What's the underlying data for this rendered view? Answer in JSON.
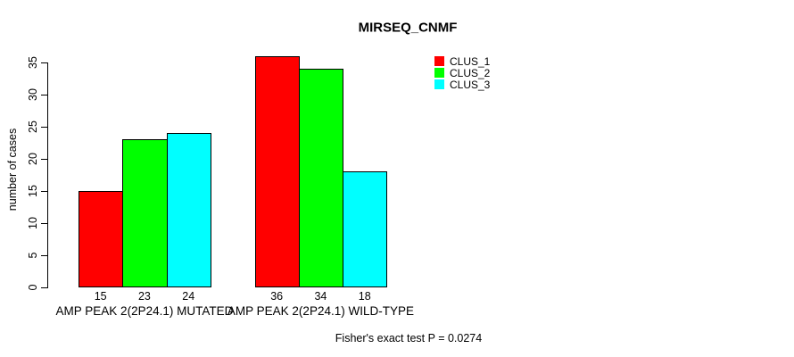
{
  "chart_data": {
    "type": "bar",
    "title": "MIRSEQ_CNMF",
    "ylabel": "number of cases",
    "xlabel": "",
    "ylim": [
      0,
      35
    ],
    "yticks": [
      0,
      5,
      10,
      15,
      20,
      25,
      30,
      35
    ],
    "grid": false,
    "background": "#ffffff",
    "categories": [
      "AMP PEAK 2(2P24.1) MUTATED",
      "AMP PEAK 2(2P24.1) WILD-TYPE"
    ],
    "series": [
      {
        "name": "CLUS_1",
        "color": "#ff0000",
        "values": [
          15,
          36
        ]
      },
      {
        "name": "CLUS_2",
        "color": "#00ff00",
        "values": [
          23,
          34
        ]
      },
      {
        "name": "CLUS_3",
        "color": "#00ffff",
        "values": [
          24,
          18
        ]
      }
    ],
    "bar_value_labels_shown": true,
    "legend": {
      "position": "top-right"
    },
    "annotation": "Fisher's exact test P = 0.0274"
  }
}
